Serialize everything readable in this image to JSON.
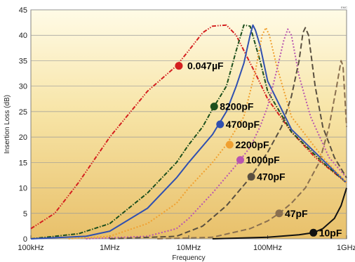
{
  "chart_data": {
    "type": "line",
    "title": "",
    "corner_mark": "EMC",
    "xlabel": "Frequency",
    "ylabel": "Insertion Loss (dB)",
    "x_scale": "log",
    "xlim": [
      "100kHz",
      "1GHz"
    ],
    "ylim": [
      0,
      45
    ],
    "x_ticks": [
      {
        "label": "100kHz",
        "hz": 100000
      },
      {
        "label": "1MHz",
        "hz": 1000000
      },
      {
        "label": "10MHz",
        "hz": 10000000
      },
      {
        "label": "100MHz",
        "hz": 100000000
      },
      {
        "label": "1GHz",
        "hz": 1000000000
      }
    ],
    "y_ticks": [
      0,
      5,
      10,
      15,
      20,
      25,
      30,
      35,
      40,
      45
    ],
    "grid": "horizontal",
    "background": "gradient",
    "series": [
      {
        "name": "0.047µF",
        "color": "#d42020",
        "dash": "dash-dot-dot",
        "marker": {
          "x_hz": 7500000,
          "y_db": 34
        },
        "points": [
          [
            100000,
            2
          ],
          [
            200000,
            5
          ],
          [
            400000,
            11
          ],
          [
            1000000,
            20
          ],
          [
            3000000,
            29
          ],
          [
            7000000,
            34
          ],
          [
            10000000,
            37
          ],
          [
            15000000,
            40.5
          ],
          [
            20000000,
            41.8
          ],
          [
            30000000,
            42
          ],
          [
            40000000,
            40
          ],
          [
            50000000,
            37
          ],
          [
            70000000,
            32.5
          ],
          [
            100000000,
            27.5
          ],
          [
            200000000,
            21
          ],
          [
            400000000,
            16
          ],
          [
            1000000000,
            11
          ]
        ]
      },
      {
        "name": "8200pF",
        "color": "#1d4f1d",
        "dash": "dash-dot",
        "marker": {
          "x_hz": 21000000,
          "y_db": 26
        },
        "points": [
          [
            100000,
            0
          ],
          [
            400000,
            1
          ],
          [
            1000000,
            3
          ],
          [
            3000000,
            9
          ],
          [
            7000000,
            15
          ],
          [
            10000000,
            18.5
          ],
          [
            15000000,
            22
          ],
          [
            20000000,
            25.5
          ],
          [
            30000000,
            30
          ],
          [
            40000000,
            37
          ],
          [
            50000000,
            42
          ],
          [
            60000000,
            41.8
          ],
          [
            80000000,
            35
          ],
          [
            100000000,
            29
          ],
          [
            200000000,
            21
          ],
          [
            500000000,
            15
          ],
          [
            1000000000,
            11
          ]
        ]
      },
      {
        "name": "4700pF",
        "color": "#3050b0",
        "dash": "solid",
        "marker": {
          "x_hz": 25000000,
          "y_db": 22.5
        },
        "points": [
          [
            100000,
            0
          ],
          [
            500000,
            0.5
          ],
          [
            1000000,
            1.5
          ],
          [
            3000000,
            6
          ],
          [
            7000000,
            12
          ],
          [
            10000000,
            15
          ],
          [
            20000000,
            20.5
          ],
          [
            30000000,
            25
          ],
          [
            40000000,
            30
          ],
          [
            50000000,
            34.5
          ],
          [
            60000000,
            40
          ],
          [
            65000000,
            42
          ],
          [
            70000000,
            41
          ],
          [
            80000000,
            38
          ],
          [
            100000000,
            31
          ],
          [
            200000000,
            21.5
          ],
          [
            500000000,
            15.5
          ],
          [
            1000000000,
            11
          ]
        ]
      },
      {
        "name": "2200pF",
        "color": "#f0a030",
        "dash": "dotted",
        "marker": {
          "x_hz": 33000000,
          "y_db": 18.5
        },
        "points": [
          [
            300000,
            0
          ],
          [
            1000000,
            0.5
          ],
          [
            3000000,
            3
          ],
          [
            7000000,
            7
          ],
          [
            10000000,
            10
          ],
          [
            20000000,
            15
          ],
          [
            30000000,
            18.5
          ],
          [
            50000000,
            24
          ],
          [
            70000000,
            33
          ],
          [
            85000000,
            40
          ],
          [
            95000000,
            41.5
          ],
          [
            105000000,
            40
          ],
          [
            130000000,
            34
          ],
          [
            200000000,
            24
          ],
          [
            500000000,
            16
          ],
          [
            1000000000,
            11
          ]
        ]
      },
      {
        "name": "1000pF",
        "color": "#b855b0",
        "dash": "dotted",
        "marker": {
          "x_hz": 45000000,
          "y_db": 15.5
        },
        "points": [
          [
            500000,
            0
          ],
          [
            3000000,
            0.5
          ],
          [
            7000000,
            2
          ],
          [
            10000000,
            4
          ],
          [
            20000000,
            9
          ],
          [
            40000000,
            14.5
          ],
          [
            60000000,
            18
          ],
          [
            80000000,
            22
          ],
          [
            100000000,
            26
          ],
          [
            130000000,
            33
          ],
          [
            160000000,
            39
          ],
          [
            180000000,
            41.2
          ],
          [
            200000000,
            40
          ],
          [
            250000000,
            32
          ],
          [
            350000000,
            24
          ],
          [
            600000000,
            16
          ],
          [
            1000000000,
            12
          ]
        ]
      },
      {
        "name": "470pF",
        "color": "#5a5040",
        "dash": "dashed",
        "marker": {
          "x_hz": 62000000,
          "y_db": 12.2
        },
        "points": [
          [
            1000000,
            0
          ],
          [
            7000000,
            0.5
          ],
          [
            15000000,
            2.5
          ],
          [
            30000000,
            6.5
          ],
          [
            60000000,
            12
          ],
          [
            100000000,
            17
          ],
          [
            150000000,
            22
          ],
          [
            200000000,
            28
          ],
          [
            250000000,
            35
          ],
          [
            280000000,
            40.5
          ],
          [
            300000000,
            41.5
          ],
          [
            330000000,
            40
          ],
          [
            400000000,
            30
          ],
          [
            500000000,
            22
          ],
          [
            700000000,
            16
          ],
          [
            1000000000,
            12
          ]
        ]
      },
      {
        "name": "47pF",
        "color": "#8a7050",
        "dash": "dashed",
        "marker": {
          "x_hz": 140000000,
          "y_db": 5
        },
        "points": [
          [
            4000000,
            0
          ],
          [
            20000000,
            0.3
          ],
          [
            60000000,
            2
          ],
          [
            100000000,
            3.5
          ],
          [
            140000000,
            5
          ],
          [
            200000000,
            7
          ],
          [
            300000000,
            10
          ],
          [
            450000000,
            15
          ],
          [
            600000000,
            22
          ],
          [
            750000000,
            30
          ],
          [
            850000000,
            35
          ],
          [
            900000000,
            34
          ],
          [
            950000000,
            28
          ],
          [
            1000000000,
            22
          ]
        ]
      },
      {
        "name": "10pF",
        "color": "#111111",
        "dash": "solid",
        "marker": {
          "x_hz": 380000000,
          "y_db": 1.2
        },
        "points": [
          [
            20000000,
            0
          ],
          [
            100000000,
            0.3
          ],
          [
            250000000,
            0.8
          ],
          [
            380000000,
            1.2
          ],
          [
            500000000,
            2
          ],
          [
            700000000,
            4
          ],
          [
            850000000,
            6.5
          ],
          [
            1000000000,
            10
          ]
        ]
      }
    ]
  }
}
